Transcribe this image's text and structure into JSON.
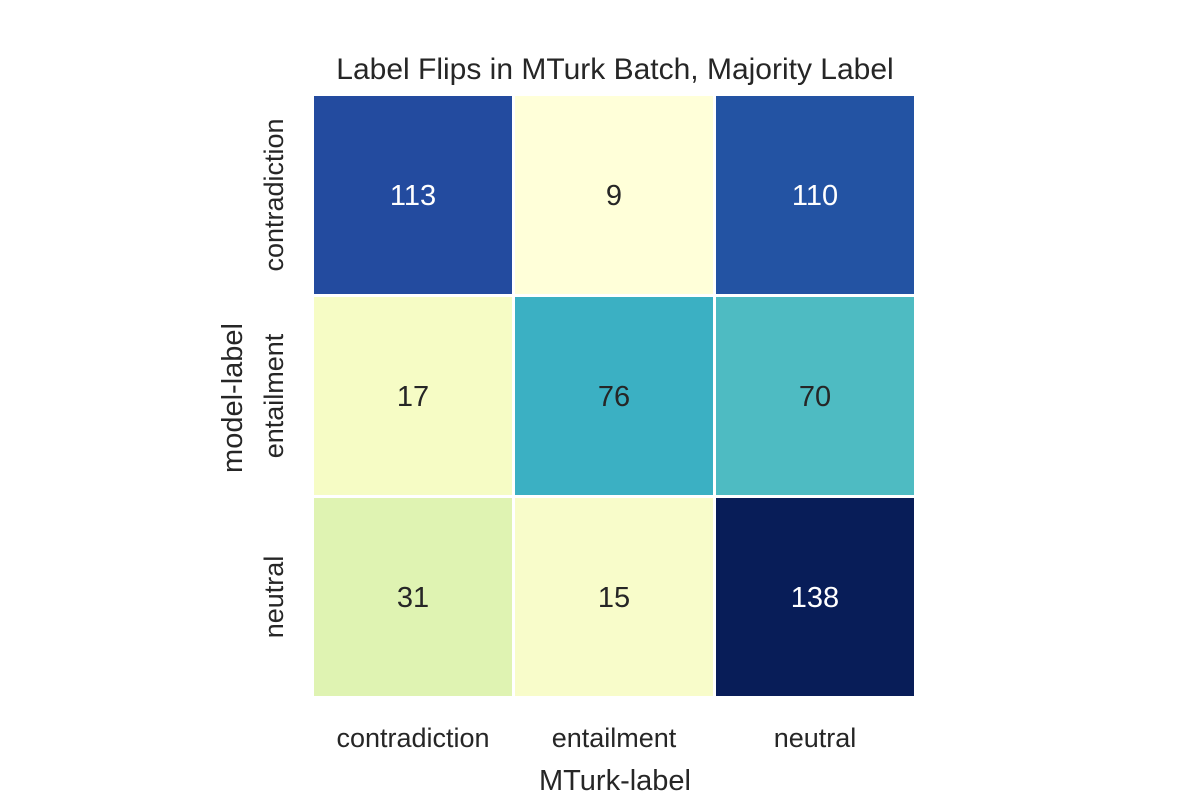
{
  "chart_data": {
    "type": "heatmap",
    "title": "Label Flips in MTurk Batch, Majority Label",
    "xlabel": "MTurk-label",
    "ylabel": "model-label",
    "x_categories": [
      "contradiction",
      "entailment",
      "neutral"
    ],
    "y_categories": [
      "contradiction",
      "entailment",
      "neutral"
    ],
    "values": [
      [
        113,
        9,
        110
      ],
      [
        17,
        76,
        70
      ],
      [
        31,
        15,
        138
      ]
    ],
    "colormap": "YlGnBu",
    "color_range": [
      9,
      138
    ],
    "colorbar": false,
    "grid_color": "#ffffff"
  }
}
